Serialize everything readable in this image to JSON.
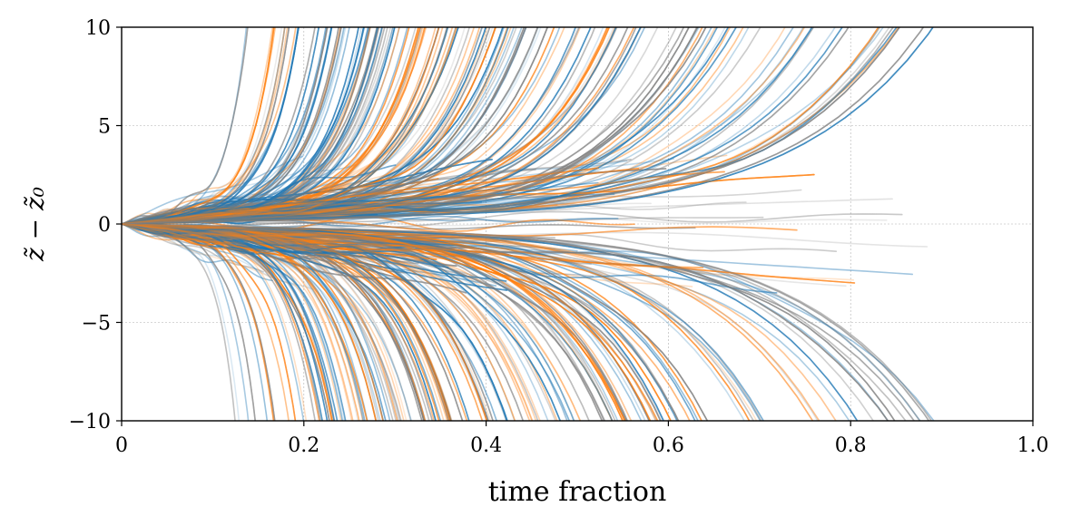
{
  "chart_data": {
    "type": "line",
    "title": "",
    "xlabel": "time fraction",
    "ylabel": "z̃ − z̃₀",
    "xlim": [
      0,
      1.0
    ],
    "ylim": [
      -10,
      10
    ],
    "x_ticks": [
      0,
      0.2,
      0.4,
      0.6,
      0.8,
      1.0
    ],
    "x_tick_labels": [
      "0",
      "0.2",
      "0.4",
      "0.6",
      "0.8",
      "1.0"
    ],
    "y_ticks": [
      -10,
      -5,
      0,
      5,
      10
    ],
    "y_tick_labels": [
      "−10",
      "−5",
      "0",
      "5",
      "10"
    ],
    "grid": true,
    "legend": "none",
    "series_colors": [
      "#1f77b4",
      "#ff7f0e",
      "#808080"
    ],
    "series_description": "many overlapping semi-transparent trajectories starting at (0, 0) and diverging toward ±10"
  }
}
